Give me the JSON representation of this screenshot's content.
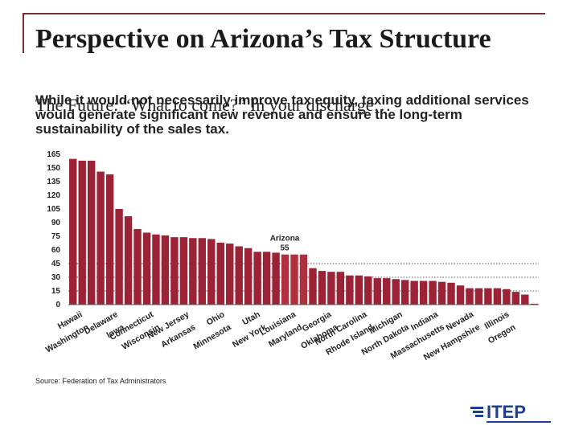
{
  "slide": {
    "title": "Perspective on Arizona’s Tax Structure",
    "overlay_text": "The Future: “What to come?” In your discharge…",
    "subtitle": "While it would not necessarily improve tax equity, taxing additional services would generate significant new revenue and ensure the long-term sustainability of the sales tax.",
    "source": "Source:  Federation of Tax Administrators",
    "logo_text": "ITEP",
    "colors": {
      "bar": "#9b2335",
      "highlight_bar": "#b0303e",
      "frame": "#7b2e3a",
      "logo": "#1f3f8f"
    }
  },
  "chart_data": {
    "type": "bar",
    "yticks": [
      0,
      15,
      30,
      45,
      60,
      75,
      90,
      105,
      120,
      135,
      150,
      165
    ],
    "ylim": [
      0,
      165
    ],
    "dotted_reference_lines": [
      15,
      30,
      45
    ],
    "categories": [
      "Hawaii",
      "Washington",
      "Delaware",
      "Iowa",
      "Connecticut",
      "Wisconsin",
      "New Jersey",
      "Arkansas",
      "Ohio",
      "Minnesota",
      "Utah",
      "New York",
      "Louisiana",
      "Maryland",
      "Georgia",
      "Oklahoma",
      "North Carolina",
      "Rhode Island",
      "Michigan",
      "North Dakota",
      "Indiana",
      "Massachusetts",
      "Nevada",
      "New Hampshire",
      "Illinois",
      "Oregon"
    ],
    "bars": [
      160,
      158,
      158,
      146,
      143,
      105,
      97,
      83,
      79,
      77,
      76,
      74,
      74,
      73,
      73,
      72,
      68,
      67,
      64,
      62,
      58,
      58,
      57,
      55,
      55,
      55,
      40,
      37,
      36,
      36,
      32,
      32,
      31,
      29,
      29,
      28,
      27,
      26,
      26,
      26,
      25,
      24,
      21,
      18,
      18,
      18,
      18,
      17,
      14,
      11,
      1
    ],
    "highlight": {
      "label": "Arizona",
      "value": "55",
      "indices": [
        23,
        24,
        25
      ]
    }
  }
}
